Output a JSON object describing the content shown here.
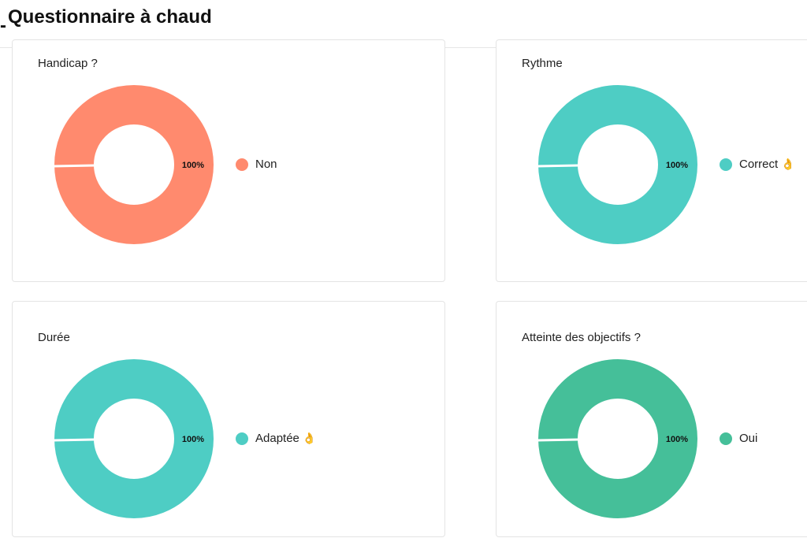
{
  "header": {
    "prefix": "-",
    "title": "Questionnaire à chaud"
  },
  "chart_data": [
    {
      "type": "pie",
      "title": "Handicap ?",
      "categories": [
        "Non"
      ],
      "values": [
        100
      ],
      "data_labels": [
        "100%"
      ],
      "colors": [
        "#ff8a6e"
      ],
      "legend": "right",
      "legend_emoji": ""
    },
    {
      "type": "pie",
      "title": "Rythme",
      "categories": [
        "Correct"
      ],
      "values": [
        100
      ],
      "data_labels": [
        "100%"
      ],
      "colors": [
        "#4ecdc4"
      ],
      "legend": "right",
      "legend_emoji": "👌"
    },
    {
      "type": "pie",
      "title": "Durée",
      "categories": [
        "Adaptée"
      ],
      "values": [
        100
      ],
      "data_labels": [
        "100%"
      ],
      "colors": [
        "#4ecdc4"
      ],
      "legend": "right",
      "legend_emoji": "👌"
    },
    {
      "type": "pie",
      "title": "Atteinte des objectifs ?",
      "categories": [
        "Oui"
      ],
      "values": [
        100
      ],
      "data_labels": [
        "100%"
      ],
      "colors": [
        "#45bf99"
      ],
      "legend": "right",
      "legend_emoji": ""
    }
  ]
}
